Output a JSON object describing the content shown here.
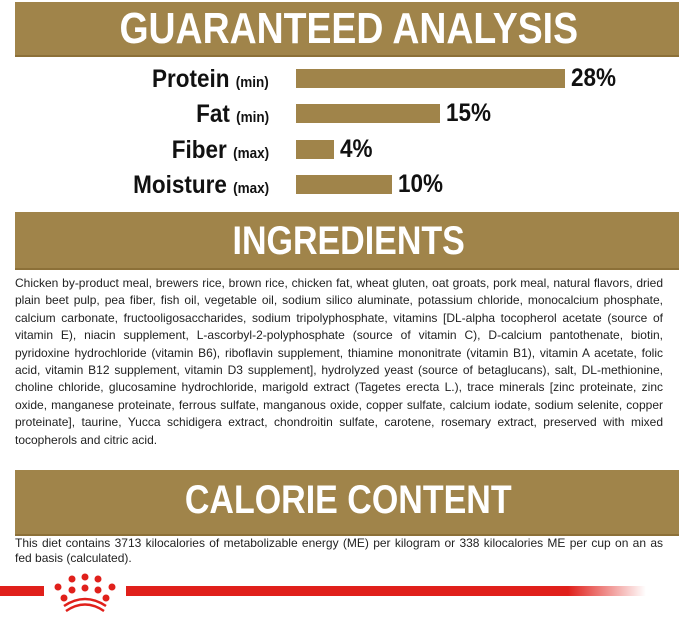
{
  "analysis": {
    "title": "GUARANTEED ANALYSIS",
    "bar_color": "#a0844a",
    "max_scale": 28,
    "rows": [
      {
        "name": "Protein",
        "qual": "(min)",
        "value": 28,
        "label": "28%"
      },
      {
        "name": "Fat",
        "qual": "(min)",
        "value": 15,
        "label": "15%"
      },
      {
        "name": "Fiber",
        "qual": "(max)",
        "value": 4,
        "label": "4%"
      },
      {
        "name": "Moisture",
        "qual": "(max)",
        "value": 10,
        "label": "10%"
      }
    ]
  },
  "ingredients": {
    "title": "INGREDIENTS",
    "text": "Chicken by-product meal, brewers rice, brown rice, chicken fat, wheat gluten, oat groats, pork meal, natural flavors, dried plain beet pulp, pea fiber, fish oil, vegetable oil, sodium silico aluminate, potassium chloride, monocalcium phosphate, calcium carbonate, fructooligosaccharides, sodium tripolyphosphate, vitamins [DL-alpha tocopherol acetate (source of vitamin E), niacin supplement, L-ascorbyl-2-polyphosphate (source of vitamin C), D-calcium pantothenate, biotin, pyridoxine hydrochloride (vitamin B6), riboflavin supplement, thiamine mononitrate (vitamin B1), vitamin A acetate, folic acid, vitamin B12 supplement, vitamin D3 supplement], hydrolyzed yeast (source of betaglucans), salt, DL-methionine, choline chloride, glucosamine hydrochloride, marigold extract (Tagetes erecta L.), trace minerals [zinc proteinate, zinc oxide, manganese proteinate, ferrous sulfate, manganous oxide, copper sulfate, calcium iodate, sodium selenite, copper proteinate], taurine, Yucca schidigera extract, chondroitin sulfate, carotene, rosemary extract, preserved with mixed tocopherols and citric acid."
  },
  "calorie": {
    "title": "CALORIE CONTENT",
    "text": "This diet contains 3713 kilocalories of metabolizable energy (ME) per kilogram or 338 kilocalories ME per cup on an as fed basis (calculated)."
  },
  "brand": {
    "logo": "crown-logo",
    "color": "#e0201b"
  }
}
